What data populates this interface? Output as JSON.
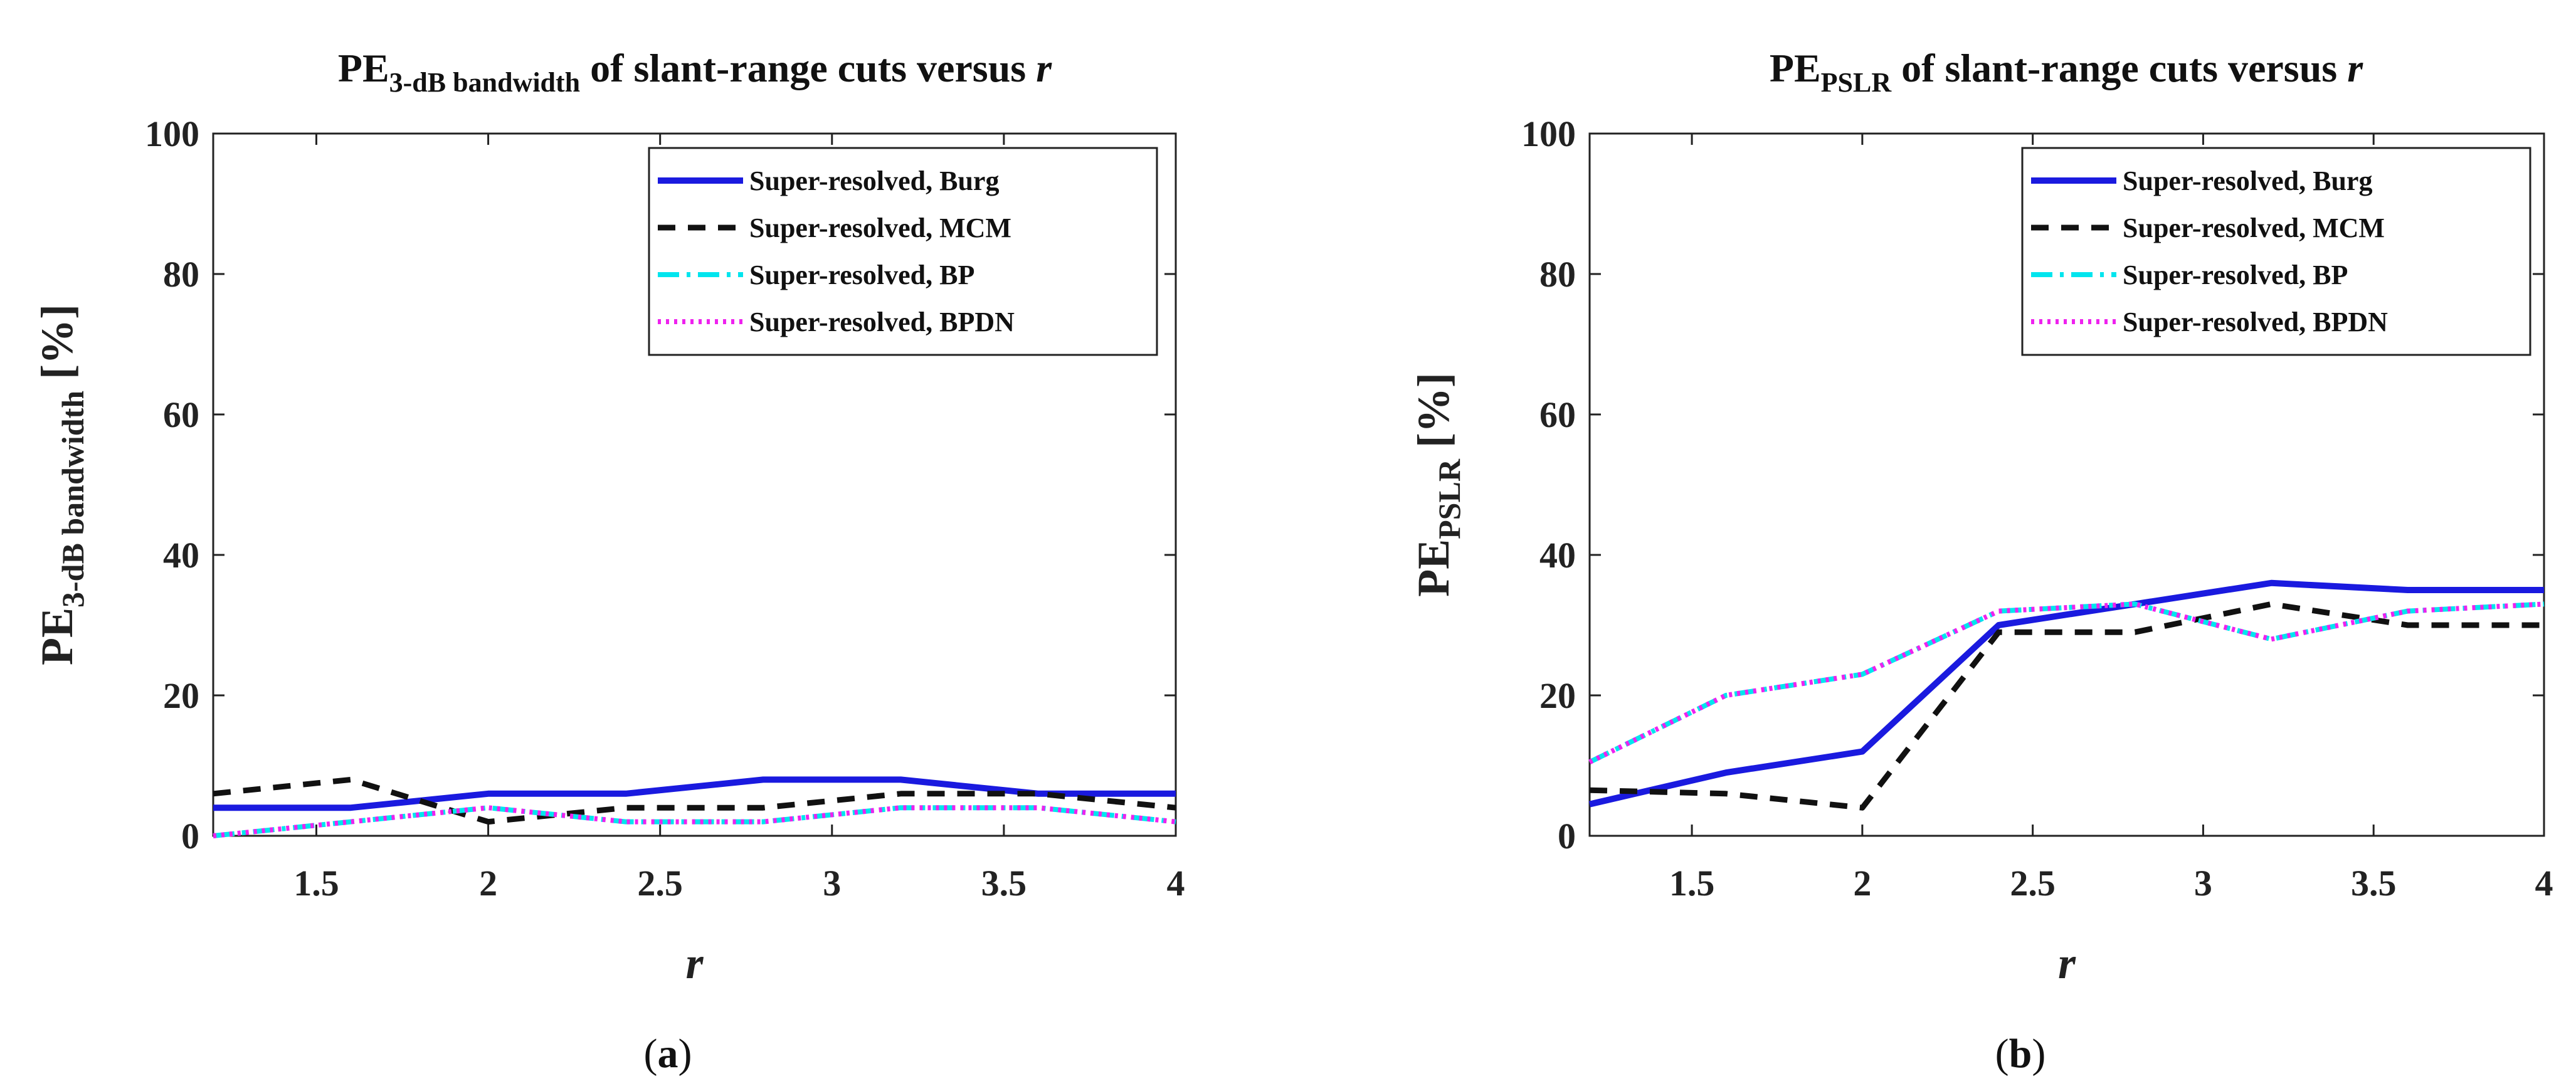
{
  "chart_data": [
    {
      "type": "line",
      "panel_label": "a",
      "title": {
        "prefix": "PE",
        "sub": "3-dB bandwidth",
        "suffix": " of slant-range cuts versus ",
        "var": "r"
      },
      "ylabel": {
        "prefix": "PE",
        "sub": "3-dB bandwidth",
        "suffix": " [%]"
      },
      "xlabel": "r",
      "xlim": [
        1.2,
        4
      ],
      "ylim": [
        0,
        100
      ],
      "xticks": [
        "1.5",
        "2",
        "2.5",
        "3",
        "3.5",
        "4"
      ],
      "yticks": [
        "0",
        "20",
        "40",
        "60",
        "80",
        "100"
      ],
      "x": [
        1.2,
        1.6,
        2.0,
        2.4,
        2.8,
        3.2,
        3.6,
        4.0
      ],
      "series": [
        {
          "name": "Super-resolved, Burg",
          "color": "#1a1adf",
          "values": [
            4,
            4,
            6,
            6,
            8,
            8,
            6,
            6
          ]
        },
        {
          "name": "Super-resolved, MCM",
          "color": "#111111",
          "values": [
            6,
            8,
            2,
            4,
            4,
            6,
            6,
            4
          ]
        },
        {
          "name": "Super-resolved, BP",
          "color": "#00e5ee",
          "values": [
            0,
            2,
            4,
            2,
            2,
            4,
            4,
            2
          ]
        },
        {
          "name": "Super-resolved, BPDN",
          "color": "#ee22ee",
          "values": [
            0,
            2,
            4,
            2,
            2,
            4,
            4,
            2
          ]
        }
      ]
    },
    {
      "type": "line",
      "panel_label": "b",
      "title": {
        "prefix": "PE",
        "sub": "PSLR",
        "suffix": " of slant-range cuts versus ",
        "var": "r"
      },
      "ylabel": {
        "prefix": "PE",
        "sub": "PSLR",
        "suffix": " [%]"
      },
      "xlabel": "r",
      "xlim": [
        1.2,
        4
      ],
      "ylim": [
        0,
        100
      ],
      "xticks": [
        "1.5",
        "2",
        "2.5",
        "3",
        "3.5",
        "4"
      ],
      "yticks": [
        "0",
        "20",
        "40",
        "60",
        "80",
        "100"
      ],
      "x": [
        1.2,
        1.6,
        2.0,
        2.4,
        2.8,
        3.2,
        3.6,
        4.0
      ],
      "series": [
        {
          "name": "Super-resolved, Burg",
          "color": "#1a1adf",
          "values": [
            4.5,
            9,
            12,
            30,
            33,
            36,
            35,
            35
          ]
        },
        {
          "name": "Super-resolved, MCM",
          "color": "#111111",
          "values": [
            6.5,
            6,
            4,
            29,
            29,
            33,
            30,
            30
          ]
        },
        {
          "name": "Super-resolved, BP",
          "color": "#00e5ee",
          "values": [
            10.5,
            20,
            23,
            32,
            33,
            28,
            32,
            33
          ]
        },
        {
          "name": "Super-resolved, BPDN",
          "color": "#ee22ee",
          "values": [
            10.5,
            20,
            23,
            32,
            33,
            28,
            32,
            33
          ]
        }
      ]
    }
  ]
}
